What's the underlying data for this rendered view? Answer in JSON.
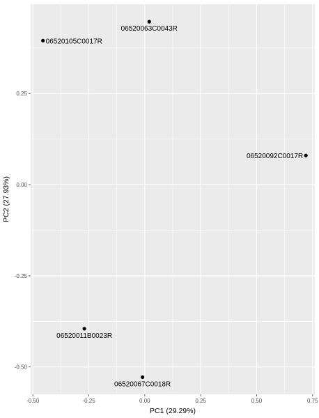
{
  "chart_data": {
    "type": "scatter",
    "title": "",
    "xlabel": "PC1 (29.29%)",
    "ylabel": "PC2 (27.93%)",
    "xlim": [
      -0.51,
      0.76
    ],
    "ylim": [
      -0.575,
      0.495
    ],
    "xticks": [
      -0.5,
      -0.25,
      0.0,
      0.25,
      0.5,
      0.75
    ],
    "xtick_labels": [
      "-0.50",
      "-0.25",
      "0.00",
      "0.25",
      "0.50",
      "0.75"
    ],
    "yticks": [
      -0.5,
      -0.25,
      0.0,
      0.25
    ],
    "ytick_labels": [
      "-0.50",
      "-0.25",
      "0.00",
      "0.25"
    ],
    "grid": true,
    "panel_background": "#ebebeb",
    "grid_color": "#ffffff",
    "point_color": "#000000",
    "points": [
      {
        "label": "06520063C0043R",
        "x": 0.02,
        "y": 0.447,
        "label_pos": "below"
      },
      {
        "label": "06520105C0017R",
        "x": -0.455,
        "y": 0.395,
        "label_pos": "right"
      },
      {
        "label": "06520092C0017R",
        "x": 0.72,
        "y": 0.08,
        "label_pos": "left"
      },
      {
        "label": "06520011B0023R",
        "x": -0.27,
        "y": -0.395,
        "label_pos": "below"
      },
      {
        "label": "06520067C0018R",
        "x": -0.01,
        "y": -0.528,
        "label_pos": "below"
      }
    ]
  }
}
